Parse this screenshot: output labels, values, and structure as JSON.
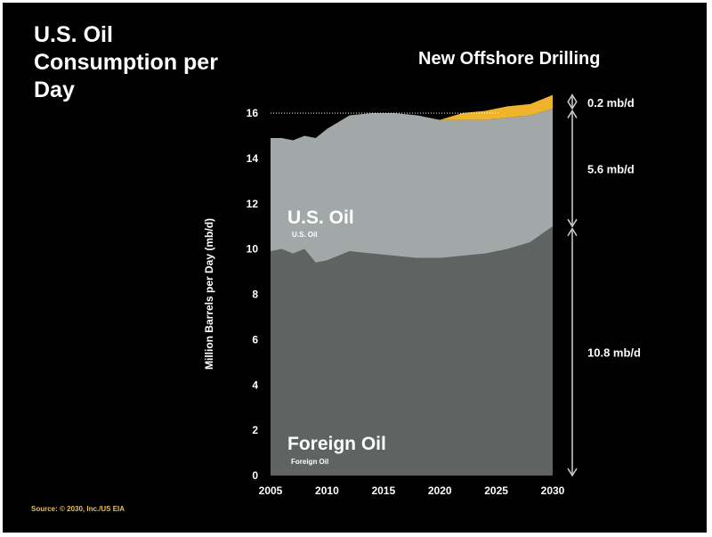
{
  "title": "U.S. Oil Consumption per Day",
  "subtitle": "New Offshore Drilling",
  "source": "Source: © 2030, Inc./US EIA",
  "colors": {
    "foreign": "#5f6362",
    "us": "#a1a8a7",
    "offshore": "#f0b42c",
    "black": "#000000"
  },
  "labels": {
    "us_big": "U.S. Oil",
    "us_small": "U.S. Oil",
    "foreign_big": "Foreign Oil",
    "foreign_small": "Foreign Oil"
  },
  "annotations": [
    {
      "text": "0.2 mb/d",
      "from": 16.2,
      "to": 16.8
    },
    {
      "text": "5.6 mb/d",
      "from": 11.0,
      "to": 16.1
    },
    {
      "text": "10.8 mb/d",
      "from": 0,
      "to": 10.9
    }
  ],
  "chart_data": {
    "type": "area",
    "stacked": true,
    "ylabel": "Million Barrels per Day (mb/d)",
    "xlim": [
      2005,
      2030
    ],
    "ylim": [
      0,
      16.8
    ],
    "xticks": [
      2005,
      2010,
      2015,
      2020,
      2025,
      2030
    ],
    "yticks": [
      0,
      2,
      4,
      6,
      8,
      10,
      12,
      14,
      16
    ],
    "reference_line": 16.0,
    "series": [
      {
        "name": "Foreign Oil",
        "x": [
          2005,
          2006,
          2007,
          2008,
          2009,
          2010,
          2012,
          2014,
          2016,
          2018,
          2020,
          2022,
          2024,
          2026,
          2028,
          2030
        ],
        "values": [
          9.9,
          10.0,
          9.8,
          10.0,
          9.4,
          9.5,
          9.9,
          9.8,
          9.7,
          9.6,
          9.6,
          9.7,
          9.8,
          10.0,
          10.3,
          11.0
        ]
      },
      {
        "name": "U.S. Oil",
        "x": [
          2005,
          2006,
          2007,
          2008,
          2009,
          2010,
          2012,
          2014,
          2016,
          2018,
          2020,
          2022,
          2024,
          2026,
          2028,
          2030
        ],
        "values": [
          5.0,
          4.9,
          5.0,
          5.0,
          5.5,
          5.8,
          6.0,
          6.2,
          6.3,
          6.3,
          6.1,
          6.0,
          5.9,
          5.8,
          5.6,
          5.2
        ]
      },
      {
        "name": "New Offshore Drilling",
        "x": [
          2005,
          2006,
          2007,
          2008,
          2009,
          2010,
          2012,
          2014,
          2016,
          2018,
          2020,
          2022,
          2024,
          2026,
          2028,
          2030
        ],
        "values": [
          0,
          0,
          0,
          0,
          0,
          0,
          0,
          0,
          0,
          0,
          0,
          0.3,
          0.4,
          0.5,
          0.5,
          0.6
        ]
      }
    ]
  }
}
